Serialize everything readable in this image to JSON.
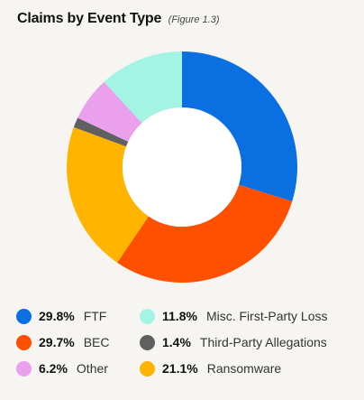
{
  "header": {
    "title": "Claims by Event Type",
    "figure_ref": "(Figure 1.3)"
  },
  "chart_data": {
    "type": "pie",
    "variant": "donut",
    "title": "Claims by Event Type",
    "slices": [
      {
        "label": "FTF",
        "value": 29.8,
        "value_label": "29.8%",
        "color": "#0a6fe0"
      },
      {
        "label": "BEC",
        "value": 29.7,
        "value_label": "29.7%",
        "color": "#ff5000"
      },
      {
        "label": "Ransomware",
        "value": 21.1,
        "value_label": "21.1%",
        "color": "#ffb400"
      },
      {
        "label": "Third-Party Allegations",
        "value": 1.4,
        "value_label": "1.4%",
        "color": "#606060"
      },
      {
        "label": "Other",
        "value": 6.2,
        "value_label": "6.2%",
        "color": "#eaa0ec"
      },
      {
        "label": "Misc. First-Party Loss",
        "value": 11.8,
        "value_label": "11.8%",
        "color": "#a4f4e4"
      }
    ],
    "legend": {
      "placement": "bottom",
      "order": [
        "FTF",
        "Misc. First-Party Loss",
        "BEC",
        "Third-Party Allegations",
        "Other",
        "Ransomware"
      ]
    }
  }
}
